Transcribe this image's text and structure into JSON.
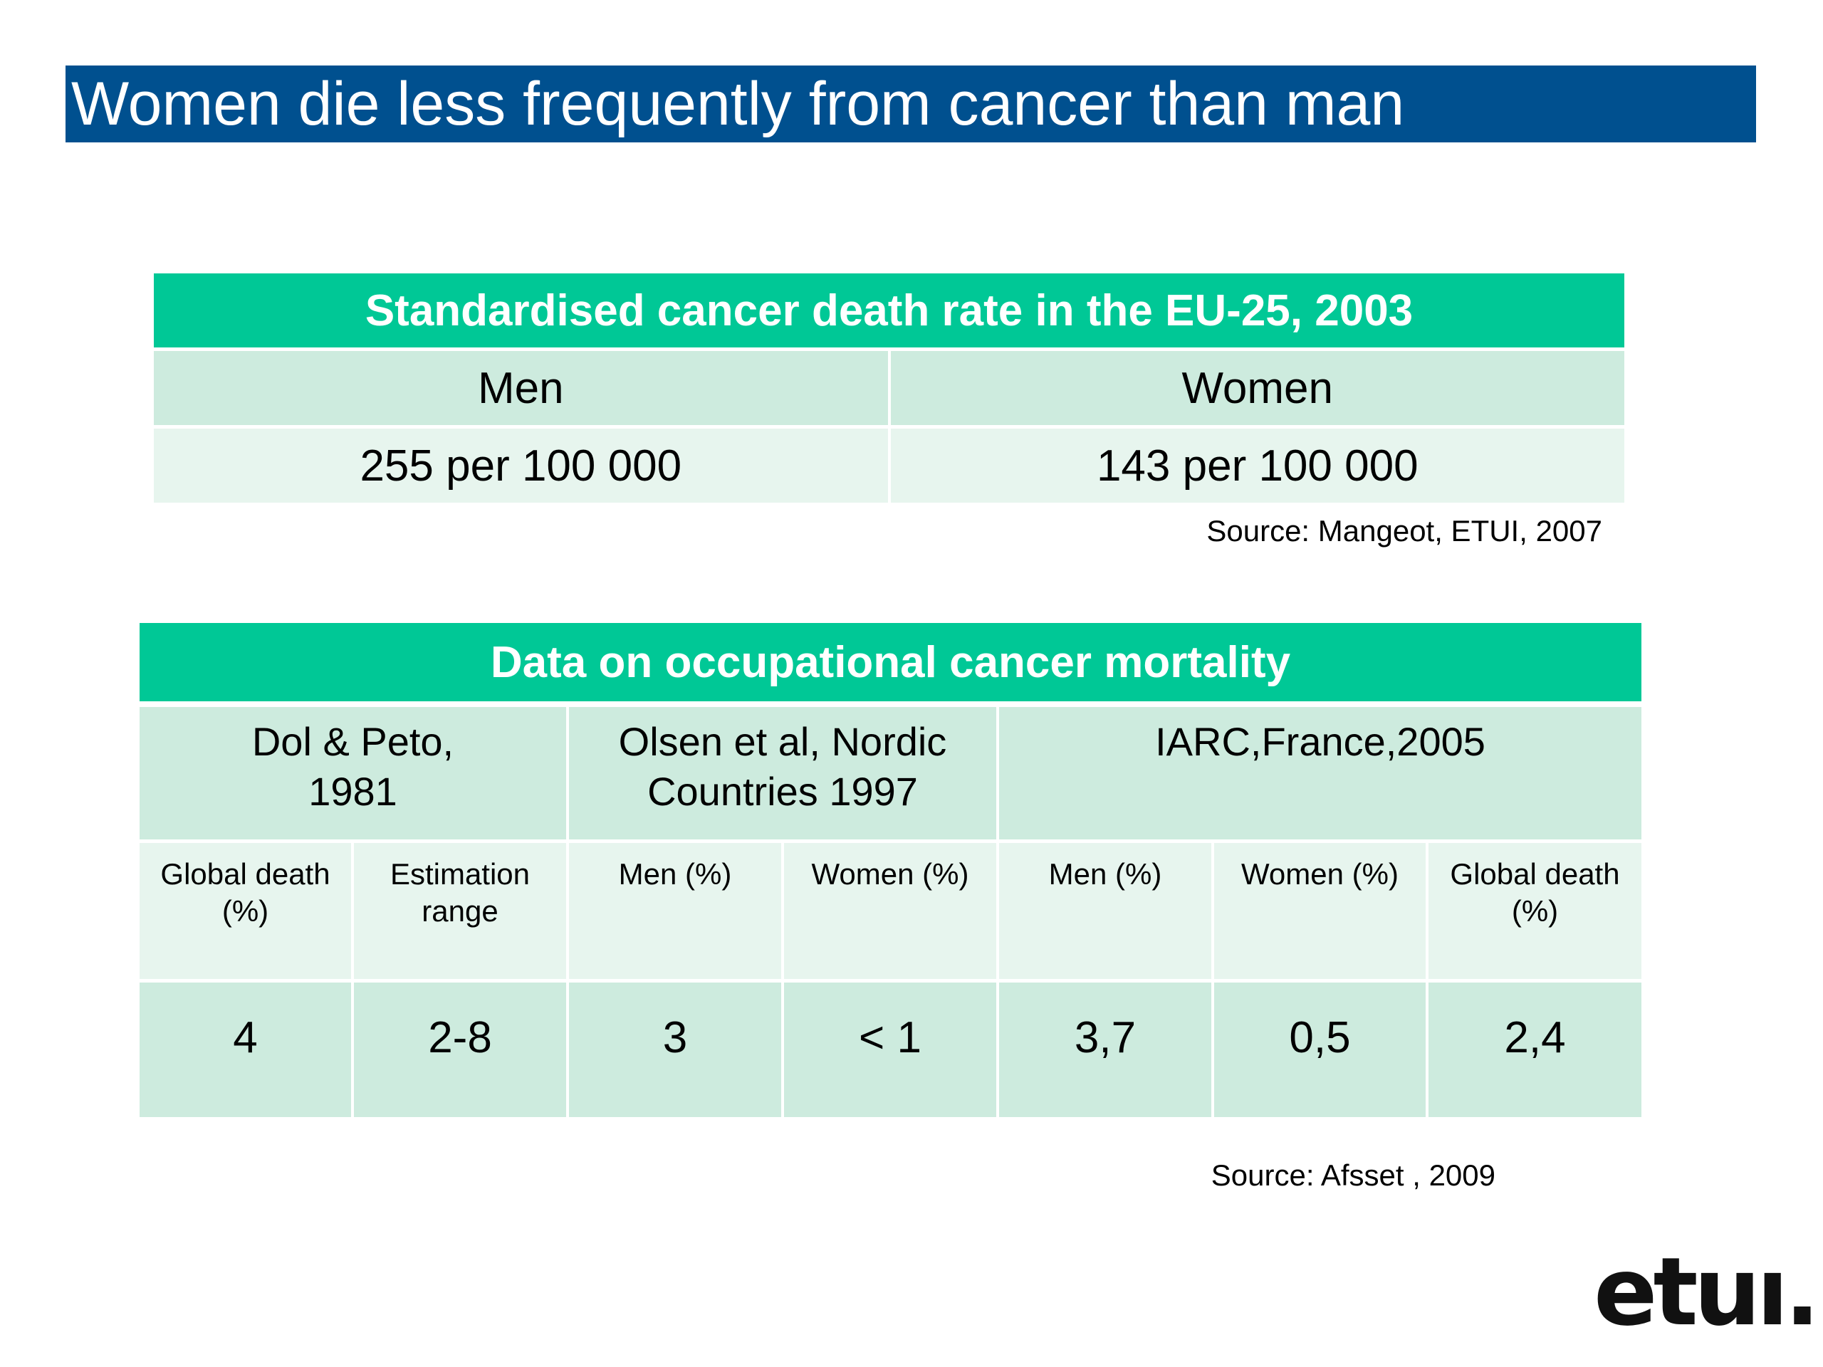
{
  "title": "Women die less frequently from cancer than man",
  "table1": {
    "title": "Standardised cancer death rate in the EU-25, 2003",
    "headers": [
      "Men",
      "Women"
    ],
    "values": [
      "255 per 100 000",
      "143 per 100 000"
    ],
    "source": "Source: Mangeot, ETUI, 2007"
  },
  "table2": {
    "title": "Data on occupational cancer mortality",
    "groups": [
      "Dol & Peto,\n1981",
      "Olsen et al, Nordic\nCountries 1997",
      "IARC,France,2005"
    ],
    "subheaders": [
      "Global death\n(%)",
      "Estimation\nrange",
      "Men (%)",
      "Women (%)",
      "Men (%)",
      "Women (%)",
      "Global death\n(%)"
    ],
    "values": [
      "4",
      "2-8",
      "3",
      "< 1",
      "3,7",
      "0,5",
      "2,4"
    ],
    "source": "Source: Afsset , 2009"
  },
  "logo": "etuı."
}
